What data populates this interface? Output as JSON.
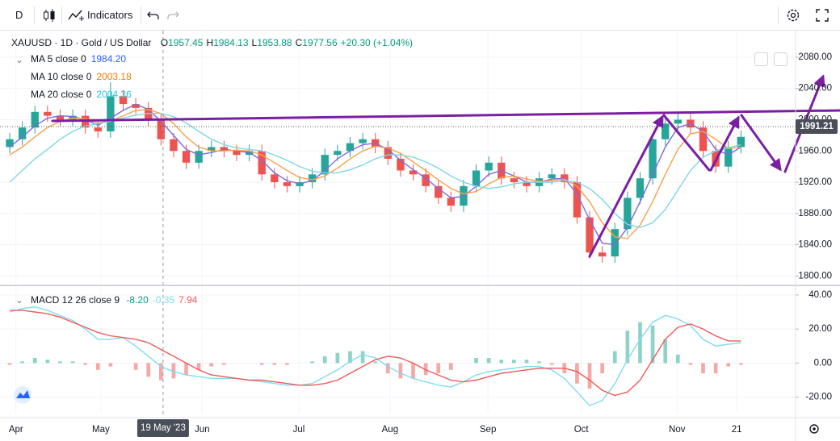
{
  "toolbar": {
    "interval": "D",
    "indicators": "Indicators"
  },
  "chart_data": [
    {
      "type": "candlestick",
      "title": "XAUUSD · 1D · Gold / US Dollar",
      "ohlc_legend": [
        {
          "label": "O",
          "value": "1957.45"
        },
        {
          "label": "H",
          "value": "1984.13"
        },
        {
          "label": "L",
          "value": "1953.88"
        },
        {
          "label": "C",
          "value": "1977.56"
        }
      ],
      "change": "+20.30 (+1.04%)",
      "legend_color": "#089981",
      "x": [
        0,
        3,
        6,
        9,
        12,
        15,
        18,
        21,
        24,
        27,
        30,
        33,
        36,
        39,
        42,
        45,
        48,
        51,
        54,
        57,
        60,
        63,
        66,
        69,
        72,
        75,
        78,
        81,
        84,
        87,
        90,
        93,
        96,
        99,
        102,
        105,
        108,
        111,
        114,
        117,
        120,
        123,
        126,
        129,
        132,
        135,
        138,
        141,
        144,
        147,
        150,
        153,
        156,
        159,
        162,
        165,
        168,
        171,
        174
      ],
      "open": [
        1965,
        1975,
        1990,
        2010,
        2005,
        2000,
        2005,
        1990,
        1985,
        2030,
        2020,
        2015,
        2000,
        1975,
        1960,
        1945,
        1960,
        1965,
        1960,
        1955,
        1960,
        1930,
        1920,
        1915,
        1920,
        1930,
        1955,
        1960,
        1970,
        1975,
        1965,
        1950,
        1935,
        1930,
        1915,
        1900,
        1890,
        1915,
        1935,
        1945,
        1925,
        1920,
        1915,
        1925,
        1930,
        1920,
        1875,
        1830,
        1825,
        1860,
        1900,
        1925,
        1975,
        1995,
        2000,
        1990,
        1960,
        1940,
        1965
      ],
      "high": [
        1983,
        1998,
        2018,
        2018,
        2013,
        2013,
        2013,
        1998,
        2048,
        2038,
        2028,
        2023,
        2008,
        1983,
        1968,
        1968,
        1973,
        1973,
        1968,
        1968,
        1968,
        1938,
        1928,
        1928,
        1938,
        1963,
        1968,
        1978,
        1983,
        1983,
        1973,
        1958,
        1943,
        1938,
        1923,
        1908,
        1923,
        1943,
        1953,
        1953,
        1933,
        1928,
        1933,
        1938,
        1938,
        1928,
        1883,
        1838,
        1868,
        1908,
        1933,
        1983,
        2003,
        2008,
        2008,
        1998,
        1968,
        1973,
        1986
      ],
      "low": [
        1957,
        1967,
        1982,
        1997,
        1992,
        1992,
        1982,
        1977,
        1977,
        2012,
        2007,
        1992,
        1967,
        1952,
        1937,
        1937,
        1952,
        1952,
        1947,
        1947,
        1922,
        1912,
        1907,
        1907,
        1912,
        1922,
        1947,
        1952,
        1962,
        1957,
        1942,
        1927,
        1922,
        1907,
        1892,
        1882,
        1882,
        1907,
        1927,
        1917,
        1912,
        1907,
        1907,
        1917,
        1912,
        1867,
        1822,
        1817,
        1817,
        1852,
        1892,
        1917,
        1967,
        1987,
        1982,
        1952,
        1932,
        1932,
        1957
      ],
      "close": [
        1975,
        1990,
        2010,
        2005,
        2000,
        2005,
        1990,
        1985,
        2030,
        2020,
        2015,
        2000,
        1975,
        1960,
        1945,
        1960,
        1965,
        1960,
        1955,
        1960,
        1930,
        1920,
        1915,
        1920,
        1930,
        1955,
        1960,
        1970,
        1975,
        1965,
        1950,
        1935,
        1930,
        1915,
        1900,
        1890,
        1915,
        1935,
        1945,
        1925,
        1920,
        1915,
        1925,
        1930,
        1920,
        1875,
        1830,
        1825,
        1860,
        1900,
        1925,
        1975,
        1995,
        2000,
        1990,
        1960,
        1940,
        1965,
        1978
      ],
      "up_color": "#26a69a",
      "down_color": "#ef5350",
      "series": [
        {
          "name": "MA 5 close 0",
          "legend_value": "1984.20",
          "legend_color": "#2962ff",
          "color": "#7e6bd9",
          "values": [
            1965,
            1978,
            1992,
            2002,
            2005,
            2004,
            2000,
            1993,
            2002,
            2012,
            2020,
            2013,
            1998,
            1980,
            1962,
            1955,
            1958,
            1962,
            1960,
            1958,
            1948,
            1932,
            1922,
            1918,
            1922,
            1935,
            1950,
            1960,
            1968,
            1970,
            1962,
            1948,
            1936,
            1925,
            1912,
            1900,
            1902,
            1915,
            1930,
            1935,
            1928,
            1920,
            1920,
            1924,
            1925,
            1905,
            1872,
            1842,
            1840,
            1862,
            1895,
            1930,
            1965,
            1990,
            1995,
            1985,
            1962,
            1955,
            1965
          ]
        },
        {
          "name": "MA 10 close 0",
          "legend_value": "2003.18",
          "legend_color": "#f57c00",
          "color": "#f7a14b",
          "values": [
            1955,
            1965,
            1978,
            1990,
            1998,
            2002,
            2001,
            1996,
            1998,
            2005,
            2012,
            2013,
            2008,
            1995,
            1978,
            1965,
            1960,
            1960,
            1961,
            1960,
            1955,
            1945,
            1935,
            1926,
            1923,
            1928,
            1938,
            1950,
            1960,
            1966,
            1964,
            1957,
            1946,
            1935,
            1923,
            1912,
            1905,
            1908,
            1918,
            1926,
            1928,
            1924,
            1921,
            1922,
            1924,
            1915,
            1895,
            1868,
            1850,
            1848,
            1865,
            1895,
            1930,
            1962,
            1982,
            1985,
            1975,
            1963,
            1965
          ]
        },
        {
          "name": "MA 20 close 0",
          "legend_value": "2004.36",
          "legend_color": "#26c6da",
          "color": "#7fd6e6",
          "values": [
            1920,
            1935,
            1950,
            1962,
            1975,
            1985,
            1992,
            1995,
            1998,
            2002,
            2006,
            2008,
            2008,
            2004,
            1996,
            1985,
            1975,
            1968,
            1964,
            1962,
            1960,
            1955,
            1948,
            1940,
            1934,
            1932,
            1932,
            1936,
            1942,
            1950,
            1955,
            1955,
            1952,
            1946,
            1938,
            1928,
            1920,
            1915,
            1912,
            1914,
            1918,
            1920,
            1920,
            1920,
            1922,
            1920,
            1912,
            1898,
            1880,
            1866,
            1862,
            1868,
            1885,
            1910,
            1935,
            1952,
            1960,
            1964,
            1968
          ]
        }
      ],
      "xlim": [
        0,
        187
      ],
      "xticks": [
        {
          "value": 1.5,
          "label": "Apr"
        },
        {
          "value": 21.7,
          "label": "May"
        },
        {
          "value": 45.8,
          "label": "Jun"
        },
        {
          "value": 68.8,
          "label": "Jul"
        },
        {
          "value": 90.5,
          "label": "Aug"
        },
        {
          "value": 113.8,
          "label": "Sep"
        },
        {
          "value": 136,
          "label": "Oct"
        },
        {
          "value": 158.8,
          "label": "Nov"
        },
        {
          "value": 173,
          "label": "21"
        }
      ],
      "ylim": [
        1790,
        2114
      ],
      "yticks": [
        {
          "value": 1800,
          "label": "1800.00"
        },
        {
          "value": 1840,
          "label": "1840.00"
        },
        {
          "value": 1880,
          "label": "1880.00"
        },
        {
          "value": 1920,
          "label": "1920.00"
        },
        {
          "value": 1960,
          "label": "1960.00"
        },
        {
          "value": 2000,
          "label": "2000.00"
        },
        {
          "value": 2040,
          "label": "2040.00"
        },
        {
          "value": 2080,
          "label": "2080.00"
        }
      ],
      "grid": true,
      "last_price": {
        "value": 1991.21,
        "label": "1991.21"
      },
      "crosshair": {
        "x": 36.5,
        "label": "19 May '23"
      }
    },
    {
      "type": "macd",
      "title": "MACD 12 26 close 9",
      "x": [
        0,
        3,
        6,
        9,
        12,
        15,
        18,
        21,
        24,
        27,
        30,
        33,
        36,
        39,
        42,
        45,
        48,
        51,
        54,
        57,
        60,
        63,
        66,
        69,
        72,
        75,
        78,
        81,
        84,
        87,
        90,
        93,
        96,
        99,
        102,
        105,
        108,
        111,
        114,
        117,
        120,
        123,
        126,
        129,
        132,
        135,
        138,
        141,
        144,
        147,
        150,
        153,
        156,
        159,
        162,
        165,
        168,
        171,
        174
      ],
      "series": [
        {
          "style": "histogram",
          "legend_value": "-8.20",
          "color": "#089981",
          "positive_color": "#8fd3c6",
          "negative_color": "#f5a9a7",
          "values": [
            -1,
            1,
            3,
            2,
            1,
            1,
            -1,
            -4,
            -2,
            0,
            -4,
            -8,
            -10,
            -9,
            -7,
            -4,
            -2,
            -1,
            0,
            0,
            -1,
            -1,
            -1,
            0,
            1,
            4,
            6,
            7,
            7,
            1,
            -6,
            -9,
            -9,
            -7,
            -6,
            -4,
            0,
            3,
            3,
            2,
            2,
            2,
            1,
            -1,
            -6,
            -12,
            -15,
            -6,
            7,
            19,
            24,
            22,
            14,
            5,
            -1,
            -6,
            -6,
            -2,
            -1
          ]
        },
        {
          "style": "line",
          "legend_value": "-0.35",
          "color": "#7fdcf0",
          "values": [
            30,
            32,
            33,
            31,
            28,
            25,
            20,
            14,
            14,
            15,
            10,
            4,
            -2,
            -5,
            -7,
            -8,
            -9,
            -9,
            -9,
            -10,
            -11,
            -12,
            -13,
            -13,
            -12,
            -8,
            -4,
            1,
            5,
            3,
            -2,
            -6,
            -9,
            -11,
            -13,
            -14,
            -11,
            -7,
            -5,
            -4,
            -3,
            -2,
            -2,
            -4,
            -9,
            -17,
            -25,
            -22,
            -12,
            2,
            14,
            24,
            28,
            26,
            22,
            14,
            10,
            11,
            12
          ]
        },
        {
          "style": "line",
          "legend_value": "7.94",
          "color": "#f05a5a",
          "values": [
            31,
            31,
            30,
            29,
            27,
            24,
            21,
            18,
            16,
            15,
            14,
            12,
            8,
            4,
            0,
            -4,
            -7,
            -8,
            -9,
            -10,
            -10,
            -11,
            -12,
            -13,
            -13,
            -12,
            -10,
            -6,
            -2,
            2,
            4,
            3,
            0,
            -4,
            -7,
            -10,
            -11,
            -10,
            -8,
            -6,
            -5,
            -4,
            -3,
            -3,
            -3,
            -5,
            -10,
            -16,
            -19,
            -17,
            -10,
            2,
            14,
            21,
            23,
            20,
            16,
            13,
            13
          ]
        }
      ],
      "ylim": [
        -29.2,
        44.7
      ],
      "yticks": [
        {
          "value": -20,
          "label": "-20.00"
        },
        {
          "value": 0,
          "label": "0.00"
        },
        {
          "value": 20,
          "label": "20.00"
        },
        {
          "value": 40,
          "label": "40.00"
        }
      ],
      "grid": true
    }
  ]
}
